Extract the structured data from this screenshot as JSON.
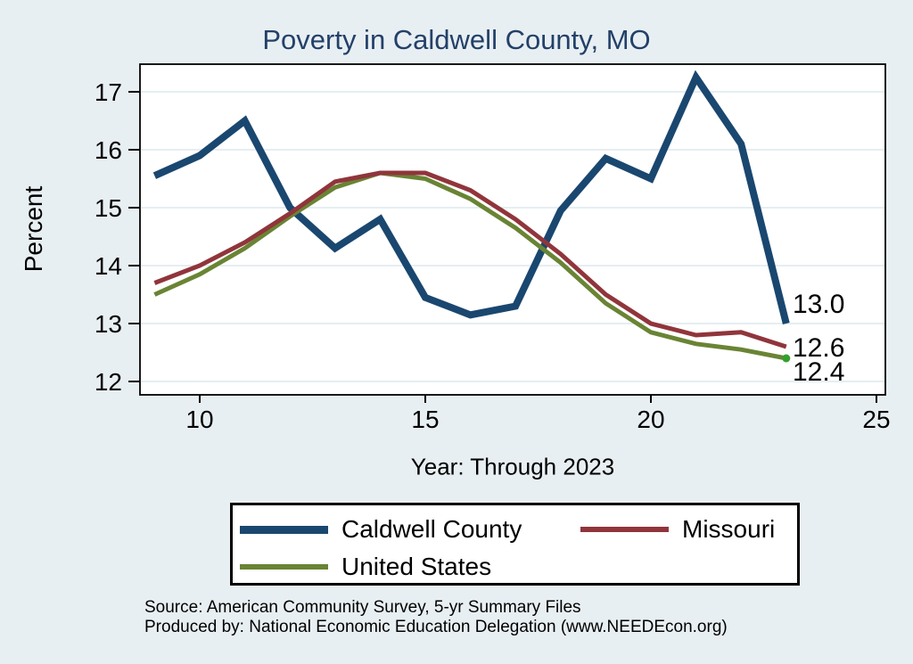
{
  "title": "Poverty in Caldwell County, MO",
  "source": {
    "line1": "Source: American Community Survey, 5-yr Summary Files",
    "line2": "Produced by: National Economic Education Delegation (www.NEEDEcon.org)"
  },
  "colors": {
    "background": "#e8eff2",
    "plot_background": "#ffffff",
    "grid": "#dde9ee",
    "axis": "#000000",
    "title_text": "#234069",
    "label_text": "#000000",
    "end_marker": "#33a02c"
  },
  "chart_data": {
    "type": "line",
    "title": "Poverty in Caldwell County, MO",
    "xlabel": "Year: Through 2023",
    "ylabel": "Percent",
    "x": [
      9,
      10,
      11,
      12,
      13,
      14,
      15,
      16,
      17,
      18,
      19,
      20,
      21,
      22,
      23
    ],
    "x_tick_values": [
      10,
      15,
      20,
      25
    ],
    "x_tick_labels": [
      "10",
      "15",
      "20",
      "25"
    ],
    "y_ticks": [
      12,
      13,
      14,
      15,
      16,
      17
    ],
    "xlim": [
      8.7,
      25.2
    ],
    "ylim": [
      11.8,
      17.5
    ],
    "grid": true,
    "legend_position": "bottom",
    "series": [
      {
        "name": "Caldwell County",
        "color": "#1a476f",
        "stroke_width": 8,
        "end_label": "13.0",
        "values": [
          15.55,
          15.9,
          16.5,
          15.0,
          14.3,
          14.8,
          13.45,
          13.15,
          13.3,
          14.95,
          15.85,
          15.5,
          17.25,
          16.1,
          13.0
        ]
      },
      {
        "name": "Missouri",
        "color": "#90353b",
        "stroke_width": 5,
        "end_label": "12.6",
        "values": [
          13.7,
          14.0,
          14.4,
          14.9,
          15.45,
          15.6,
          15.6,
          15.3,
          14.8,
          14.2,
          13.5,
          13.0,
          12.8,
          12.85,
          12.6
        ]
      },
      {
        "name": "United States",
        "color": "#698434",
        "stroke_width": 5,
        "end_label": "12.4",
        "end_marker": true,
        "values": [
          13.5,
          13.85,
          14.3,
          14.85,
          15.35,
          15.6,
          15.5,
          15.15,
          14.65,
          14.05,
          13.35,
          12.85,
          12.65,
          12.55,
          12.4
        ]
      }
    ]
  },
  "legend": {
    "items": [
      "Caldwell County",
      "Missouri",
      "United States"
    ]
  }
}
